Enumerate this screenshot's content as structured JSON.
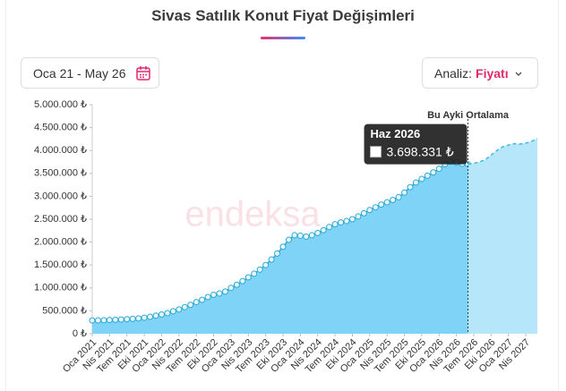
{
  "header": {
    "title": "Sivas Satılık Konut Fiyat Değişimleri",
    "date_range": "Oca 21 - May 26",
    "analysis_label": "Analiz:",
    "analysis_value": "Fiyatı"
  },
  "chart_data": {
    "type": "area",
    "watermark": "endeksa",
    "annotation": "Bu Ayki Ortalama",
    "categories": [
      "Oca 2021",
      null,
      null,
      "Nis 2021",
      null,
      null,
      "Tem 2021",
      null,
      null,
      "Eki 2021",
      null,
      null,
      "Oca 2022",
      null,
      null,
      "Nis 2022",
      null,
      null,
      "Tem 2022",
      null,
      null,
      "Eki 2022",
      null,
      null,
      "Oca 2023",
      null,
      null,
      "Nis 2023",
      null,
      null,
      "Tem 2023",
      null,
      null,
      "Eki 2023",
      null,
      null,
      "Oca 2024",
      null,
      null,
      "Nis 2024",
      null,
      null,
      "Tem 2024",
      null,
      null,
      "Eki 2024",
      null,
      null,
      "Oca 2025",
      null,
      null,
      "Nis 2025",
      null,
      null,
      "Tem 2025",
      null,
      null,
      "Eki 2025",
      null,
      null,
      "Oca 2026",
      null,
      null,
      "Nis 2026",
      null,
      null,
      "Tem 2026",
      null,
      null,
      "Eki 2026",
      null,
      null,
      "Oca 2027",
      null,
      null,
      "Nis 2027",
      null,
      null
    ],
    "series": [
      {
        "color": "#2ba8d6",
        "fill": "#7fd3f6",
        "values": [
          290000,
          292000,
          295000,
          300000,
          305000,
          310000,
          318000,
          325000,
          335000,
          350000,
          370000,
          395000,
          420000,
          450000,
          490000,
          530000,
          580000,
          630000,
          690000,
          740000,
          800000,
          850000,
          880000,
          920000,
          1000000,
          1070000,
          1150000,
          1230000,
          1310000,
          1400000,
          1500000,
          1620000,
          1750000,
          1900000,
          2050000,
          2150000,
          2140000,
          2120000,
          2150000,
          2200000,
          2260000,
          2330000,
          2390000,
          2430000,
          2460000,
          2500000,
          2560000,
          2630000,
          2700000,
          2760000,
          2820000,
          2870000,
          2920000,
          2980000,
          3080000,
          3200000,
          3300000,
          3380000,
          3450000,
          3520000,
          3600000,
          3700000,
          3760000,
          3740000,
          3710000,
          3698331,
          null,
          null,
          null,
          null,
          null,
          null,
          null,
          null,
          null,
          null,
          null,
          null
        ]
      },
      {
        "color": "#45b8e2",
        "fill": "#b5e6f9",
        "dashed": true,
        "values": [
          null,
          null,
          null,
          null,
          null,
          null,
          null,
          null,
          null,
          null,
          null,
          null,
          null,
          null,
          null,
          null,
          null,
          null,
          null,
          null,
          null,
          null,
          null,
          null,
          null,
          null,
          null,
          null,
          null,
          null,
          null,
          null,
          null,
          null,
          null,
          null,
          null,
          null,
          null,
          null,
          null,
          null,
          null,
          null,
          null,
          null,
          null,
          null,
          null,
          null,
          null,
          null,
          null,
          null,
          null,
          null,
          null,
          null,
          null,
          null,
          null,
          null,
          null,
          null,
          null,
          3698331,
          3720000,
          3750000,
          3800000,
          3900000,
          4000000,
          4080000,
          4120000,
          4150000,
          4140000,
          4160000,
          4200000,
          4260000
        ]
      }
    ],
    "tooltip": {
      "category": "Haz 2026",
      "value": 3698331,
      "value_label": "3.698.331 ₺"
    },
    "ylim": [
      0,
      5000000
    ],
    "yticks": [
      {
        "value": 0,
        "label": "0 ₺"
      },
      {
        "value": 500000,
        "label": "500.000 ₺"
      },
      {
        "value": 1000000,
        "label": "1.000.000 ₺"
      },
      {
        "value": 1500000,
        "label": "1.500.000 ₺"
      },
      {
        "value": 2000000,
        "label": "2.000.000 ₺"
      },
      {
        "value": 2500000,
        "label": "2.500.000 ₺"
      },
      {
        "value": 3000000,
        "label": "3.000.000 ₺"
      },
      {
        "value": 3500000,
        "label": "3.500.000 ₺"
      },
      {
        "value": 4000000,
        "label": "4.000.000 ₺"
      },
      {
        "value": 4500000,
        "label": "4.500.000 ₺"
      },
      {
        "value": 5000000,
        "label": "5.000.000 ₺"
      }
    ]
  }
}
